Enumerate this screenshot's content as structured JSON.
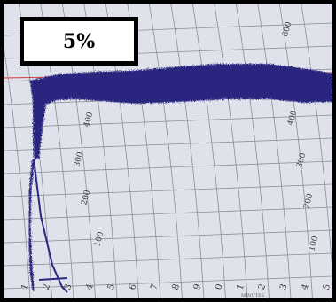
{
  "label": {
    "text": "5%"
  },
  "chart": {
    "bottom_ticks": [
      "1",
      "2",
      "3",
      "4",
      "5",
      "6",
      "7",
      "8",
      "9",
      "0",
      "1",
      "2",
      "3",
      "4",
      "5"
    ],
    "bottom_caption": "MINUTES",
    "left_ticks": [
      "100",
      "200",
      "300",
      "400"
    ],
    "right_ticks": [
      "100",
      "200",
      "300",
      "400",
      "600"
    ]
  },
  "colors": {
    "ink": "#2a2880",
    "paper": "#dfe2ea",
    "grid": "#8a8f98",
    "red_line": "#d04040"
  }
}
